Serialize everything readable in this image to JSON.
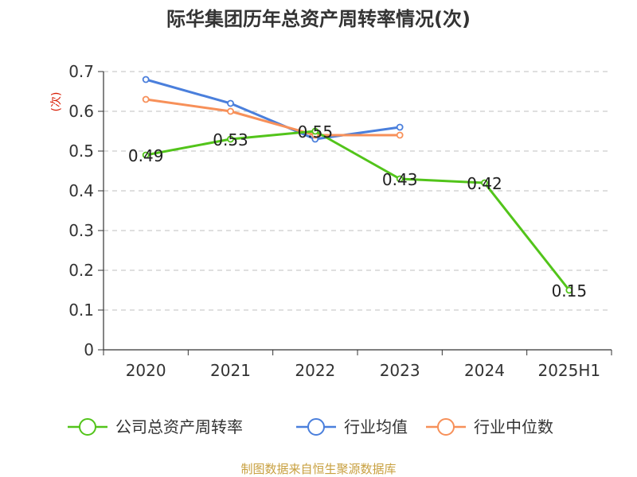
{
  "chart_data": {
    "type": "line",
    "title": "际华集团历年总资产周转率情况(次)",
    "ylabel": "(次)",
    "categories": [
      "2020",
      "2021",
      "2022",
      "2023",
      "2024",
      "2025H1"
    ],
    "ylim": [
      0,
      0.7
    ],
    "yticks": [
      "0",
      "0.1",
      "0.2",
      "0.3",
      "0.4",
      "0.5",
      "0.6",
      "0.7"
    ],
    "grid": true,
    "legend_position": "bottom",
    "series": [
      {
        "name": "公司总资产周转率",
        "color": "#52c41a",
        "values": [
          0.49,
          0.53,
          0.55,
          0.43,
          0.42,
          0.15
        ],
        "labels": [
          "0.49",
          "0.53",
          "0.55",
          "0.43",
          "0.42",
          "0.15"
        ]
      },
      {
        "name": "行业均值",
        "color": "#4a7fdc",
        "values": [
          0.68,
          0.62,
          0.53,
          0.56,
          null,
          null
        ]
      },
      {
        "name": "行业中位数",
        "color": "#f79059",
        "values": [
          0.63,
          0.6,
          0.54,
          0.54,
          null,
          null
        ]
      }
    ],
    "source": "制图数据来自恒生聚源数据库"
  }
}
